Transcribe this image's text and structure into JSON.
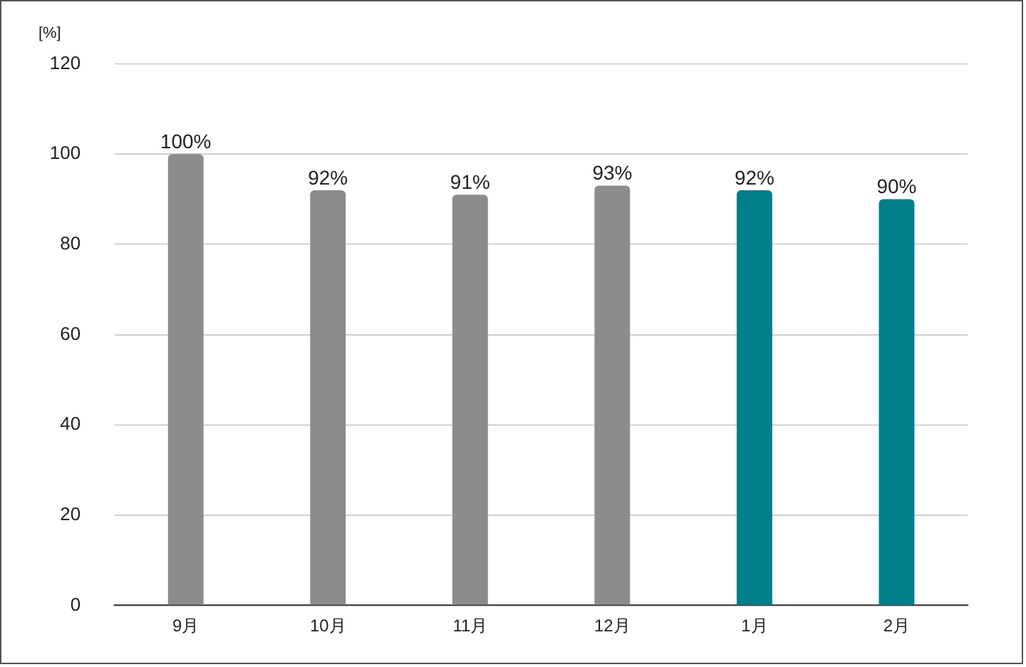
{
  "chart_data": {
    "type": "bar",
    "ylabel": "[%]",
    "categories": [
      "9月",
      "10月",
      "11月",
      "12月",
      "1月",
      "2月"
    ],
    "values": [
      100,
      92,
      91,
      93,
      92,
      90
    ],
    "colors": [
      "#8c8c8c",
      "#8c8c8c",
      "#8c8c8c",
      "#8c8c8c",
      "#007f8a",
      "#007f8a"
    ],
    "value_labels": [
      "100%",
      "92%",
      "91%",
      "93%",
      "92%",
      "90%"
    ],
    "ylim": [
      0,
      120
    ],
    "yticks": [
      0,
      20,
      40,
      60,
      80,
      100,
      120
    ],
    "grid": "y",
    "legend": false
  }
}
